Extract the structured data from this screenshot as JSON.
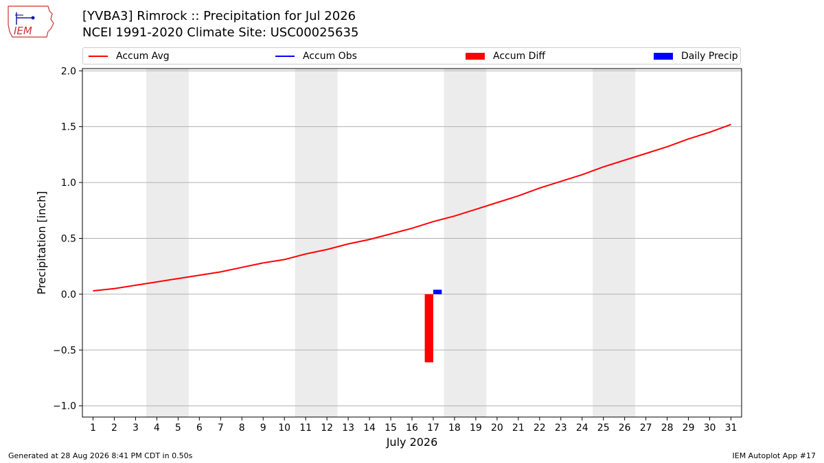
{
  "header": {
    "title_line1": "[YVBA3] Rimrock :: Precipitation for Jul 2026",
    "title_line2": "NCEI 1991-2020 Climate Site: USC00025635",
    "logo_text": "IEM"
  },
  "legend": {
    "items": [
      {
        "label": "Accum Avg",
        "kind": "line",
        "color": "#ff0000"
      },
      {
        "label": "Accum Obs",
        "kind": "line",
        "color": "#0000ff"
      },
      {
        "label": "Accum Diff",
        "kind": "box",
        "color": "#ff0000"
      },
      {
        "label": "Daily Precip",
        "kind": "box",
        "color": "#0000ff"
      }
    ]
  },
  "chart_data": {
    "type": "line",
    "xlabel": "July 2026",
    "ylabel": "Precipitation [inch]",
    "xlim": [
      0.5,
      31.5
    ],
    "ylim": [
      -1.1,
      2.02
    ],
    "yticks": [
      -1.0,
      -0.5,
      0.0,
      0.5,
      1.0,
      1.5,
      2.0
    ],
    "ytick_labels": [
      "−1.0",
      "−0.5",
      "0.0",
      "0.5",
      "1.0",
      "1.5",
      "2.0"
    ],
    "x": [
      1,
      2,
      3,
      4,
      5,
      6,
      7,
      8,
      9,
      10,
      11,
      12,
      13,
      14,
      15,
      16,
      17,
      18,
      19,
      20,
      21,
      22,
      23,
      24,
      25,
      26,
      27,
      28,
      29,
      30,
      31
    ],
    "xtick_labels": [
      "1",
      "2",
      "3",
      "4",
      "5",
      "6",
      "7",
      "8",
      "9",
      "10",
      "11",
      "12",
      "13",
      "14",
      "15",
      "16",
      "17",
      "18",
      "19",
      "20",
      "21",
      "22",
      "23",
      "24",
      "25",
      "26",
      "27",
      "28",
      "29",
      "30",
      "31"
    ],
    "weekend_shading": [
      [
        3.5,
        5.5
      ],
      [
        10.5,
        12.5
      ],
      [
        17.5,
        19.5
      ],
      [
        24.5,
        26.5
      ]
    ],
    "grid": "horizontal",
    "series": [
      {
        "name": "Accum Avg",
        "type": "line",
        "color": "#ff0000",
        "values": [
          0.03,
          0.05,
          0.08,
          0.11,
          0.14,
          0.17,
          0.2,
          0.24,
          0.28,
          0.31,
          0.36,
          0.4,
          0.45,
          0.49,
          0.54,
          0.59,
          0.65,
          0.7,
          0.76,
          0.82,
          0.88,
          0.95,
          1.01,
          1.07,
          1.14,
          1.2,
          1.26,
          1.32,
          1.39,
          1.45,
          1.52
        ]
      },
      {
        "name": "Accum Diff",
        "type": "bar",
        "color": "#ff0000",
        "x": [
          16.8
        ],
        "values": [
          -0.61
        ]
      },
      {
        "name": "Daily Precip",
        "type": "bar",
        "color": "#0000ff",
        "x": [
          17.2
        ],
        "values": [
          0.04
        ]
      }
    ]
  },
  "footer": {
    "generated": "Generated at 28 Aug 2026 8:41 PM CDT in 0.50s",
    "app": "IEM Autoplot App #17"
  }
}
